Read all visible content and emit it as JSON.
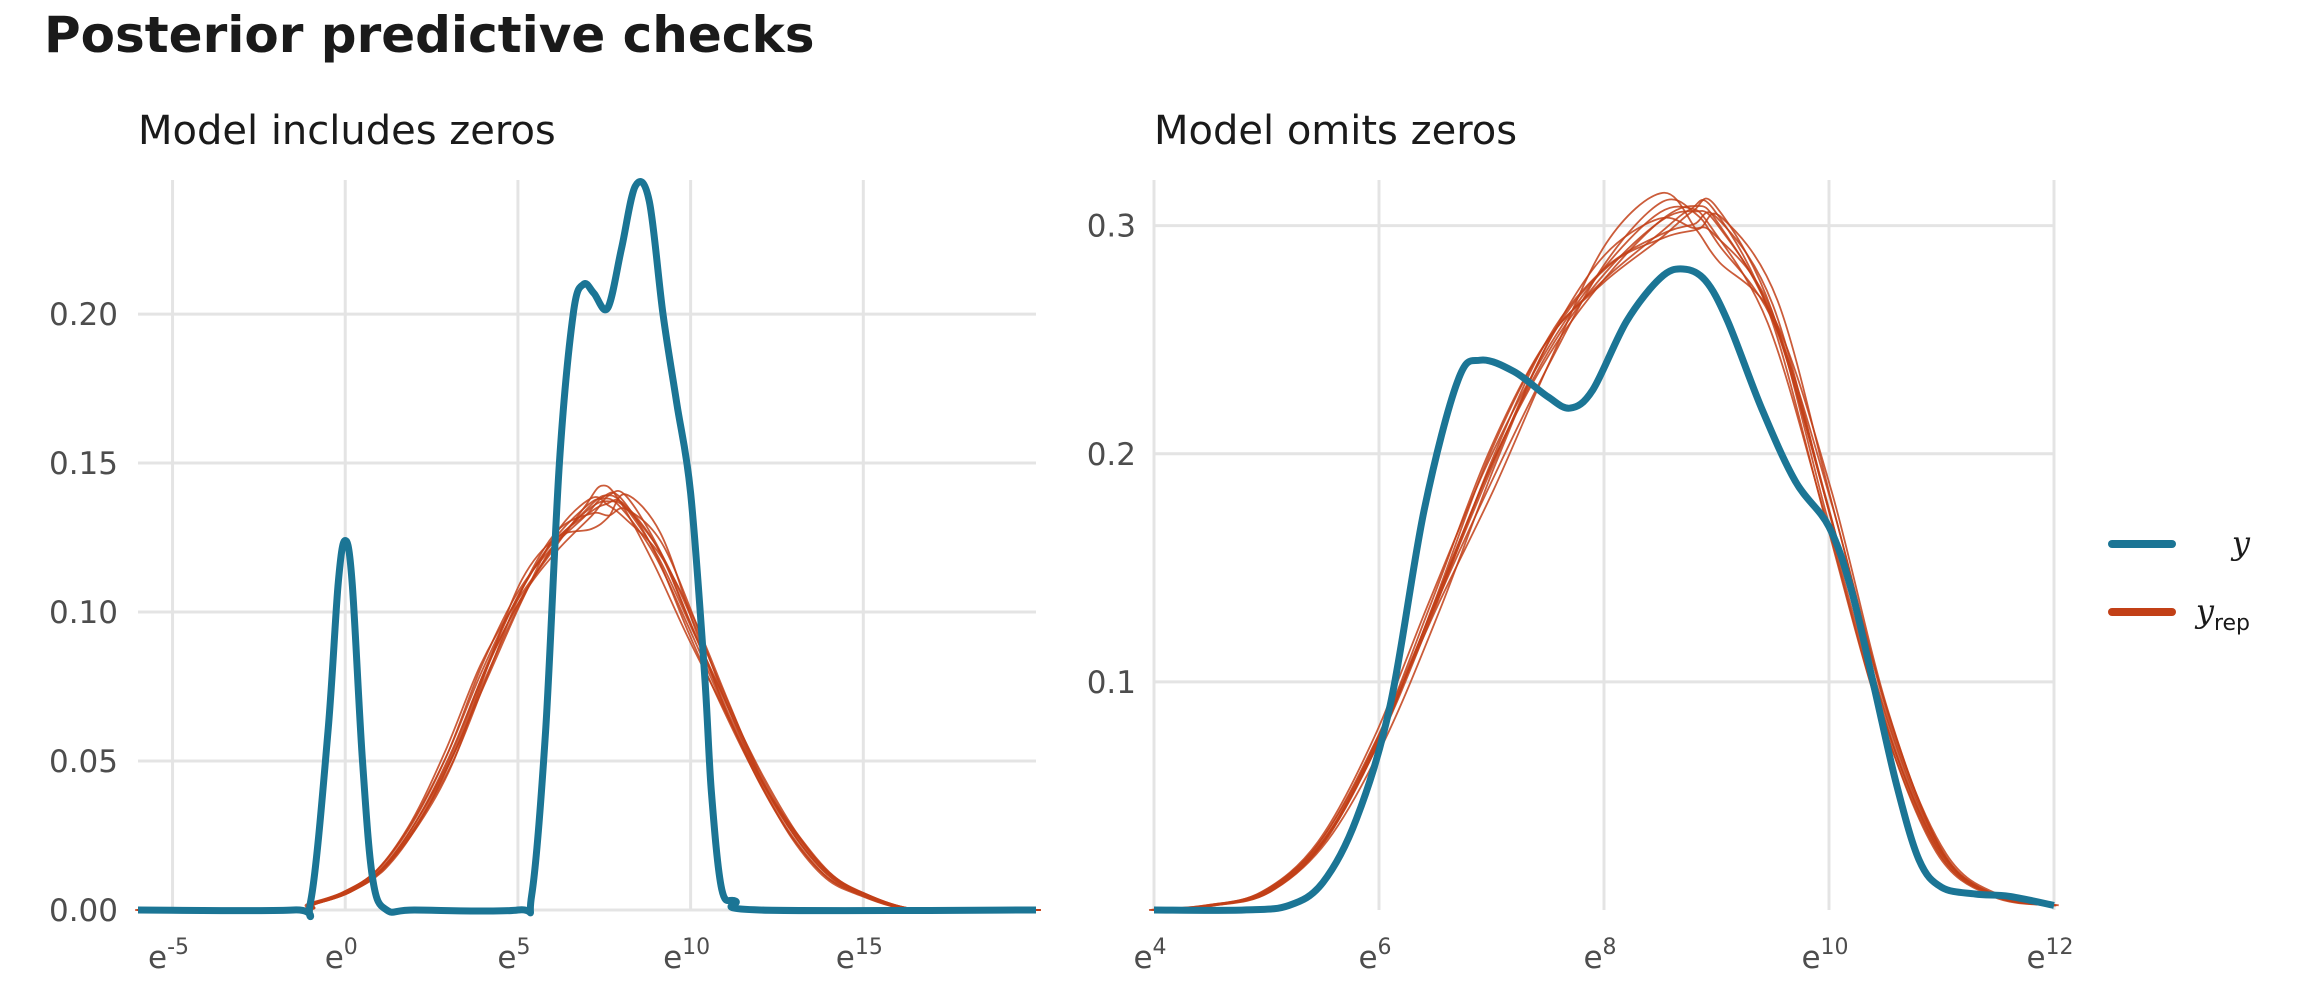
{
  "title": "Posterior predictive checks",
  "colors": {
    "observed": "#1b7595",
    "replicated": "#c24017",
    "grid": "#e4e4e4",
    "axis_text": "#4d4d4d"
  },
  "legend": [
    {
      "key": "observed",
      "label": "y",
      "subscript": ""
    },
    {
      "key": "replicated",
      "label": "y",
      "subscript": "rep"
    }
  ],
  "chart_data": [
    {
      "type": "line",
      "title": "Model includes zeros",
      "x_scale": "log (base e)",
      "xlim": [
        -6,
        20
      ],
      "ylim": [
        0,
        0.245
      ],
      "x_ticks": [
        {
          "value": -5,
          "base": "e",
          "exp": "-5"
        },
        {
          "value": 0,
          "base": "e",
          "exp": "0"
        },
        {
          "value": 5,
          "base": "e",
          "exp": "5"
        },
        {
          "value": 10,
          "base": "e",
          "exp": "10"
        },
        {
          "value": 15,
          "base": "e",
          "exp": "15"
        }
      ],
      "y_ticks": [
        {
          "value": 0.0,
          "label": "0.00"
        },
        {
          "value": 0.05,
          "label": "0.05"
        },
        {
          "value": 0.1,
          "label": "0.10"
        },
        {
          "value": 0.15,
          "label": "0.15"
        },
        {
          "value": 0.2,
          "label": "0.20"
        }
      ],
      "series": [
        {
          "key": "observed",
          "x": [
            -6,
            -1.5,
            -1,
            -0.5,
            -0.2,
            0,
            0.2,
            0.5,
            0.8,
            1.2,
            2,
            5,
            5.4,
            5.8,
            6.2,
            6.6,
            6.9,
            7.2,
            7.6,
            8.0,
            8.4,
            8.8,
            9.2,
            9.6,
            10.0,
            10.4,
            10.6,
            10.9,
            11.3,
            12,
            20
          ],
          "y": [
            0,
            0,
            0.003,
            0.06,
            0.11,
            0.124,
            0.11,
            0.05,
            0.01,
            0.0,
            0,
            0,
            0.005,
            0.06,
            0.15,
            0.2,
            0.21,
            0.207,
            0.202,
            0.222,
            0.243,
            0.238,
            0.2,
            0.17,
            0.14,
            0.08,
            0.04,
            0.007,
            0.003,
            0,
            0
          ]
        },
        {
          "key": "replicated",
          "x": [
            -6,
            -1.5,
            -1,
            0,
            1,
            2,
            3,
            4,
            5,
            6,
            7,
            7.5,
            8,
            9,
            10,
            11,
            12,
            13,
            14,
            15,
            16,
            17,
            20
          ],
          "y": [
            0,
            0,
            0.002,
            0.006,
            0.014,
            0.03,
            0.052,
            0.08,
            0.105,
            0.124,
            0.135,
            0.137,
            0.135,
            0.12,
            0.095,
            0.068,
            0.043,
            0.024,
            0.011,
            0.005,
            0.001,
            0,
            0
          ],
          "draws": 10
        }
      ]
    },
    {
      "type": "line",
      "title": "Model omits zeros",
      "x_scale": "log (base e)",
      "xlim": [
        4,
        12
      ],
      "ylim": [
        0,
        0.32
      ],
      "x_ticks": [
        {
          "value": 4,
          "base": "e",
          "exp": "4"
        },
        {
          "value": 6,
          "base": "e",
          "exp": "6"
        },
        {
          "value": 8,
          "base": "e",
          "exp": "8"
        },
        {
          "value": 10,
          "base": "e",
          "exp": "10"
        },
        {
          "value": 12,
          "base": "e",
          "exp": "12"
        }
      ],
      "y_ticks": [
        {
          "value": 0.1,
          "label": "0.1"
        },
        {
          "value": 0.2,
          "label": "0.2"
        },
        {
          "value": 0.3,
          "label": "0.3"
        }
      ],
      "series": [
        {
          "key": "observed",
          "x": [
            4,
            4.8,
            5.2,
            5.5,
            5.8,
            6.1,
            6.4,
            6.7,
            6.9,
            7.2,
            7.5,
            7.7,
            7.9,
            8.2,
            8.5,
            8.7,
            8.9,
            9.1,
            9.4,
            9.7,
            10.0,
            10.2,
            10.4,
            10.6,
            10.8,
            11.0,
            11.3,
            11.6,
            12
          ],
          "y": [
            0,
            0,
            0.002,
            0.012,
            0.04,
            0.09,
            0.175,
            0.232,
            0.241,
            0.236,
            0.225,
            0.22,
            0.228,
            0.258,
            0.277,
            0.281,
            0.276,
            0.258,
            0.22,
            0.188,
            0.168,
            0.14,
            0.098,
            0.055,
            0.022,
            0.01,
            0.007,
            0.006,
            0.002
          ]
        },
        {
          "key": "replicated",
          "x": [
            4,
            4.5,
            5.0,
            5.5,
            6.0,
            6.5,
            7.0,
            7.5,
            8.0,
            8.5,
            8.8,
            9.0,
            9.5,
            10.0,
            10.5,
            11.0,
            11.5,
            12
          ],
          "y": [
            0,
            0.002,
            0.008,
            0.03,
            0.075,
            0.135,
            0.195,
            0.245,
            0.28,
            0.302,
            0.305,
            0.3,
            0.26,
            0.175,
            0.085,
            0.025,
            0.006,
            0.002
          ],
          "draws": 10
        }
      ]
    }
  ]
}
